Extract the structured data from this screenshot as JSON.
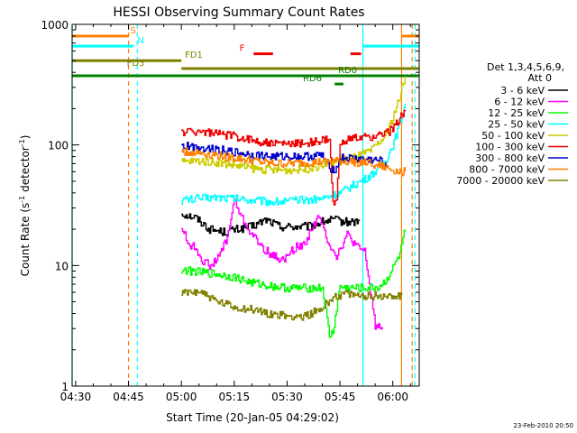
{
  "chart_data": {
    "type": "line",
    "title": "HESSI Observing Summary Count Rates",
    "xlabel": "Start Time (20-Jan-05 04:29:02)",
    "ylabel_main": "Count Rate (s",
    "ylabel_sup1": "-1",
    "ylabel_mid": " detector",
    "ylabel_sup2": "-1",
    "ylabel_end": ")",
    "yscale": "log",
    "ylim": [
      1,
      1000
    ],
    "xlim_minutes": [
      269.0,
      367.5
    ],
    "x_ticks": [
      {
        "m": 270,
        "label": "04:30"
      },
      {
        "m": 285,
        "label": "04:45"
      },
      {
        "m": 300,
        "label": "05:00"
      },
      {
        "m": 315,
        "label": "05:15"
      },
      {
        "m": 330,
        "label": "05:30"
      },
      {
        "m": 345,
        "label": "05:45"
      },
      {
        "m": 360,
        "label": "06:00"
      }
    ],
    "y_ticks": [
      {
        "v": 1,
        "label": "1"
      },
      {
        "v": 10,
        "label": "10"
      },
      {
        "v": 100,
        "label": "100"
      },
      {
        "v": 1000,
        "label": "1000"
      }
    ],
    "legend": {
      "header1": "Det 1,3,4,5,6,9,",
      "header2": "Att 0",
      "position": "right",
      "entries": [
        {
          "label": "3 - 6 keV",
          "color": "#000000"
        },
        {
          "label": "6 - 12 keV",
          "color": "#ff00ff"
        },
        {
          "label": "12 - 25 keV",
          "color": "#00ff00"
        },
        {
          "label": "25 - 50 keV",
          "color": "#00ffff"
        },
        {
          "label": "50 - 100 keV",
          "color": "#cccc00"
        },
        {
          "label": "100 - 300 keV",
          "color": "#ee0000"
        },
        {
          "label": "300 - 800 keV",
          "color": "#0000cc"
        },
        {
          "label": "800 - 7000 keV",
          "color": "#ff8000"
        },
        {
          "label": "7000 - 20000 keV",
          "color": "#808000"
        }
      ]
    },
    "series": [
      {
        "name": "3 - 6 keV",
        "color": "#000000",
        "x": [
          300,
          304,
          308,
          312,
          316,
          320,
          324,
          328,
          332,
          336,
          340,
          343,
          346,
          349,
          350.5
        ],
        "y": [
          27,
          25,
          20,
          19,
          20,
          21,
          24,
          21,
          21,
          21,
          23,
          24,
          23,
          23,
          24
        ]
      },
      {
        "name": "6 - 12 keV",
        "color": "#ff00ff",
        "x": [
          300,
          302,
          304,
          306,
          308,
          310,
          313,
          315,
          317,
          320,
          323,
          326,
          329,
          332,
          335,
          337,
          339,
          342,
          344,
          347,
          350,
          352,
          355,
          357
        ],
        "y": [
          21,
          15,
          14,
          11,
          10,
          11,
          17,
          35,
          25,
          18,
          14,
          12,
          11,
          14,
          15,
          21,
          25,
          15,
          12,
          18,
          14,
          13,
          3.2,
          3.1
        ]
      },
      {
        "name": "12 - 25 keV",
        "color": "#00ff00",
        "x": [
          300,
          305,
          310,
          315,
          320,
          325,
          330,
          335,
          340,
          342,
          343,
          345,
          346,
          348,
          352,
          356,
          358,
          360,
          362,
          363.5
        ],
        "y": [
          9.2,
          8.8,
          8.5,
          8.0,
          7.2,
          6.8,
          6.5,
          6.5,
          6.5,
          2.6,
          2.8,
          6.8,
          6.5,
          6.5,
          6.5,
          6.6,
          7.5,
          9.5,
          12.5,
          20
        ]
      },
      {
        "name": "25 - 50 keV",
        "color": "#00ffff",
        "x": [
          300,
          305,
          310,
          315,
          320,
          325,
          330,
          335,
          340,
          345,
          348,
          352,
          355,
          358,
          360,
          362,
          363.5
        ],
        "y": [
          35,
          36,
          37,
          36,
          35,
          34,
          34,
          35,
          36,
          40,
          45,
          52,
          60,
          75,
          100,
          150,
          220
        ]
      },
      {
        "name": "50 - 100 keV",
        "color": "#cccc00",
        "x": [
          300,
          305,
          310,
          315,
          320,
          325,
          330,
          335,
          340,
          345,
          350,
          354,
          358,
          360,
          362,
          363.5
        ],
        "y": [
          72,
          74,
          72,
          68,
          64,
          62,
          62,
          63,
          68,
          75,
          80,
          90,
          120,
          170,
          250,
          370
        ]
      },
      {
        "name": "100 - 300 keV",
        "color": "#ee0000",
        "x": [
          300,
          305,
          310,
          315,
          320,
          325,
          330,
          335,
          340,
          342,
          343,
          344,
          345,
          346,
          348,
          352,
          355,
          358,
          360,
          362,
          363.5
        ],
        "y": [
          128,
          130,
          124,
          118,
          110,
          103,
          102,
          104,
          108,
          112,
          32,
          34,
          105,
          110,
          112,
          115,
          118,
          125,
          135,
          170,
          190
        ]
      },
      {
        "name": "300 - 800 keV",
        "color": "#0000cc",
        "x": [
          300,
          305,
          310,
          315,
          320,
          325,
          330,
          335,
          340,
          342,
          344,
          345,
          348,
          352,
          356,
          358
        ],
        "y": [
          98,
          96,
          92,
          87,
          83,
          80,
          80,
          80,
          82,
          64,
          63,
          78,
          77,
          76,
          74,
          72
        ]
      },
      {
        "name": "800 - 7000 keV",
        "color": "#ff8000",
        "x": [
          300,
          305,
          310,
          315,
          320,
          325,
          330,
          335,
          340,
          345,
          350,
          354,
          357,
          360,
          362,
          363.5
        ],
        "y": [
          88,
          86,
          82,
          78,
          74,
          70,
          70,
          71,
          72,
          73,
          72,
          70,
          66,
          62,
          60,
          60
        ]
      },
      {
        "name": "7000 - 20000 keV",
        "color": "#808000",
        "x": [
          300,
          305,
          310,
          315,
          320,
          325,
          330,
          335,
          340,
          343,
          346,
          350,
          355,
          360,
          362.5
        ],
        "y": [
          5.8,
          6.2,
          5.0,
          4.5,
          4.3,
          4.0,
          3.8,
          3.8,
          4.4,
          5.5,
          5.8,
          5.6,
          5.6,
          5.6,
          5.7
        ]
      }
    ],
    "flag_bars": [
      {
        "label": "S",
        "color": "#ff8000",
        "y": 800,
        "segments": [
          [
            269,
            285
          ],
          [
            362.5,
            367.5
          ]
        ],
        "label_at": 285.5
      },
      {
        "label": "N",
        "color": "#00ffff",
        "y": 660,
        "segments": [
          [
            269,
            286.5
          ],
          [
            351.5,
            367.5
          ]
        ],
        "label_at": 287.5
      },
      {
        "label": "FD1",
        "color": "#808000",
        "y": 500,
        "segments": [
          [
            269,
            300
          ]
        ],
        "label_at": 301
      },
      {
        "label": "FD3",
        "color": "#808000",
        "y": 430,
        "segments": [
          [
            300,
            367.5
          ]
        ],
        "label_at": 284.5
      },
      {
        "label": "F",
        "color": "#ee0000",
        "y": 570,
        "segments": [
          [
            320.5,
            326
          ],
          [
            348,
            351
          ]
        ],
        "label_at": 316.5
      },
      {
        "label": "RD0",
        "color": "#008000",
        "y": 375,
        "segments": [
          [
            269,
            367.5
          ]
        ],
        "label_at": 344.5
      },
      {
        "label": "RD6",
        "color": "#008000",
        "y": 320,
        "segments": [
          [
            343.5,
            346
          ]
        ],
        "label_at": 334.5
      }
    ],
    "vertical_lines": [
      {
        "m": 269.0,
        "color": "#00ffff",
        "dash": false
      },
      {
        "m": 285.0,
        "color": "#ff8000",
        "dash": true
      },
      {
        "m": 287.5,
        "color": "#00ffff",
        "dash": true
      },
      {
        "m": 351.5,
        "color": "#00ffff",
        "dash": false
      },
      {
        "m": 362.5,
        "color": "#ff8000",
        "dash": false
      },
      {
        "m": 365.5,
        "color": "#ff8000",
        "dash": true
      },
      {
        "m": 366.3,
        "color": "#00ffff",
        "dash": true
      }
    ]
  },
  "footer": {
    "timestamp": "23-Feb-2010 20:50"
  }
}
